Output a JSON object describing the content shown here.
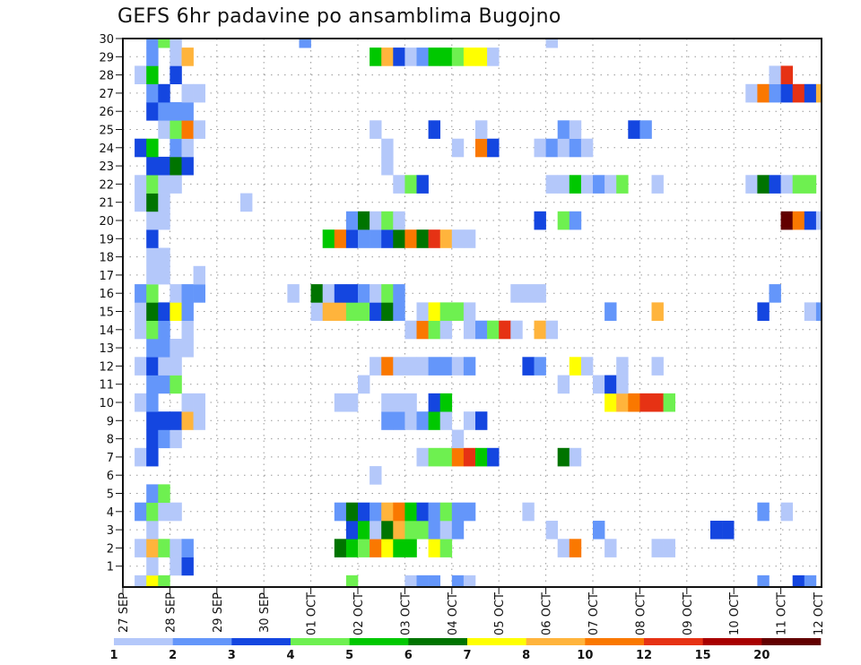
{
  "chart_data": {
    "type": "heatmap",
    "title": "GEFS 6hr padavine po ansamblima Bugojno",
    "xlabel": "",
    "ylabel": "",
    "x_unit": "6-hour step",
    "x_steps": 60,
    "x_tick_labels": [
      "27 SEP",
      "28 SEP",
      "29 SEP",
      "30 SEP",
      "01 OCT",
      "02 OCT",
      "03 OCT",
      "04 OCT",
      "05 OCT",
      "06 OCT",
      "07 OCT",
      "08 OCT",
      "09 OCT",
      "10 OCT",
      "11 OCT",
      "12 OCT"
    ],
    "y_tick_labels": [
      "1",
      "2",
      "3",
      "4",
      "5",
      "6",
      "7",
      "8",
      "9",
      "10",
      "11",
      "12",
      "13",
      "14",
      "15",
      "16",
      "17",
      "18",
      "19",
      "20",
      "21",
      "22",
      "23",
      "24",
      "25",
      "26",
      "27",
      "28",
      "29",
      "30"
    ],
    "ylim": [
      0,
      30
    ],
    "grid": true,
    "legend": {
      "placement": "bottom",
      "labels": [
        "1",
        "2",
        "3",
        "4",
        "5",
        "6",
        "7",
        "8",
        "10",
        "12",
        "15",
        "20"
      ],
      "colors": [
        "#b4c8fa",
        "#6496fa",
        "#1446e0",
        "#6ef050",
        "#00c800",
        "#007400",
        "#ffff00",
        "#ffb43c",
        "#fa7800",
        "#e63214",
        "#a80000",
        "#620000"
      ]
    },
    "cells_note": "rows keyed by ensemble member; each pair is [6h step index, colour class 1-12]",
    "rows": {
      "30": [
        [
          2,
          2
        ],
        [
          3,
          4
        ],
        [
          4,
          1
        ],
        [
          15,
          2
        ],
        [
          36,
          1
        ]
      ],
      "29": [
        [
          2,
          2
        ],
        [
          4,
          1
        ],
        [
          5,
          8
        ],
        [
          21,
          5
        ],
        [
          22,
          8
        ],
        [
          23,
          3
        ],
        [
          24,
          1
        ],
        [
          25,
          2
        ],
        [
          26,
          5
        ],
        [
          27,
          5
        ],
        [
          28,
          4
        ],
        [
          29,
          7
        ],
        [
          30,
          7
        ],
        [
          31,
          1
        ]
      ],
      "28": [
        [
          1,
          1
        ],
        [
          2,
          5
        ],
        [
          4,
          3
        ],
        [
          55,
          1
        ],
        [
          56,
          10
        ]
      ],
      "27": [
        [
          2,
          2
        ],
        [
          3,
          3
        ],
        [
          5,
          1
        ],
        [
          6,
          1
        ],
        [
          53,
          1
        ],
        [
          54,
          9
        ],
        [
          55,
          2
        ],
        [
          56,
          3
        ],
        [
          57,
          10
        ],
        [
          58,
          3
        ],
        [
          59,
          8
        ]
      ],
      "26": [
        [
          2,
          3
        ],
        [
          3,
          2
        ],
        [
          4,
          2
        ],
        [
          5,
          2
        ]
      ],
      "25": [
        [
          3,
          1
        ],
        [
          4,
          4
        ],
        [
          5,
          9
        ],
        [
          6,
          1
        ],
        [
          21,
          1
        ],
        [
          26,
          3
        ],
        [
          30,
          1
        ],
        [
          37,
          2
        ],
        [
          38,
          1
        ],
        [
          43,
          3
        ],
        [
          44,
          2
        ]
      ],
      "24": [
        [
          1,
          3
        ],
        [
          2,
          5
        ],
        [
          4,
          2
        ],
        [
          5,
          1
        ],
        [
          22,
          1
        ],
        [
          28,
          1
        ],
        [
          30,
          9
        ],
        [
          31,
          3
        ],
        [
          35,
          1
        ],
        [
          36,
          2
        ],
        [
          37,
          1
        ],
        [
          38,
          2
        ],
        [
          39,
          1
        ]
      ],
      "23": [
        [
          2,
          3
        ],
        [
          3,
          3
        ],
        [
          4,
          6
        ],
        [
          5,
          3
        ],
        [
          22,
          1
        ]
      ],
      "22": [
        [
          1,
          1
        ],
        [
          2,
          4
        ],
        [
          3,
          1
        ],
        [
          4,
          1
        ],
        [
          23,
          1
        ],
        [
          24,
          4
        ],
        [
          25,
          3
        ],
        [
          36,
          1
        ],
        [
          37,
          1
        ],
        [
          38,
          5
        ],
        [
          39,
          1
        ],
        [
          40,
          2
        ],
        [
          41,
          1
        ],
        [
          42,
          4
        ],
        [
          45,
          1
        ],
        [
          53,
          1
        ],
        [
          54,
          6
        ],
        [
          55,
          3
        ],
        [
          56,
          1
        ],
        [
          57,
          4
        ],
        [
          58,
          4
        ]
      ],
      "21": [
        [
          1,
          1
        ],
        [
          2,
          6
        ],
        [
          3,
          1
        ],
        [
          10,
          1
        ]
      ],
      "20": [
        [
          2,
          1
        ],
        [
          3,
          1
        ],
        [
          19,
          2
        ],
        [
          20,
          6
        ],
        [
          21,
          1
        ],
        [
          22,
          4
        ],
        [
          23,
          1
        ],
        [
          35,
          3
        ],
        [
          37,
          4
        ],
        [
          38,
          2
        ],
        [
          56,
          12
        ],
        [
          57,
          9
        ],
        [
          58,
          3
        ],
        [
          59,
          1
        ]
      ],
      "19": [
        [
          2,
          3
        ],
        [
          17,
          5
        ],
        [
          18,
          9
        ],
        [
          19,
          3
        ],
        [
          20,
          2
        ],
        [
          21,
          2
        ],
        [
          22,
          3
        ],
        [
          23,
          6
        ],
        [
          24,
          9
        ],
        [
          25,
          6
        ],
        [
          26,
          10
        ],
        [
          27,
          8
        ],
        [
          28,
          1
        ],
        [
          29,
          1
        ]
      ],
      "18": [
        [
          2,
          1
        ],
        [
          3,
          1
        ]
      ],
      "17": [
        [
          2,
          1
        ],
        [
          3,
          1
        ],
        [
          6,
          1
        ]
      ],
      "16": [
        [
          1,
          2
        ],
        [
          2,
          4
        ],
        [
          4,
          1
        ],
        [
          5,
          2
        ],
        [
          6,
          2
        ],
        [
          14,
          1
        ],
        [
          16,
          6
        ],
        [
          17,
          1
        ],
        [
          18,
          3
        ],
        [
          19,
          3
        ],
        [
          20,
          2
        ],
        [
          21,
          1
        ],
        [
          22,
          4
        ],
        [
          23,
          2
        ],
        [
          33,
          1
        ],
        [
          34,
          1
        ],
        [
          35,
          1
        ],
        [
          55,
          2
        ]
      ],
      "15": [
        [
          1,
          1
        ],
        [
          2,
          6
        ],
        [
          3,
          3
        ],
        [
          4,
          7
        ],
        [
          5,
          2
        ],
        [
          16,
          1
        ],
        [
          17,
          8
        ],
        [
          18,
          8
        ],
        [
          19,
          4
        ],
        [
          20,
          4
        ],
        [
          21,
          3
        ],
        [
          22,
          6
        ],
        [
          23,
          2
        ],
        [
          25,
          1
        ],
        [
          26,
          7
        ],
        [
          27,
          4
        ],
        [
          28,
          4
        ],
        [
          29,
          1
        ],
        [
          41,
          2
        ],
        [
          45,
          8
        ],
        [
          54,
          3
        ],
        [
          58,
          1
        ],
        [
          59,
          2
        ]
      ],
      "14": [
        [
          1,
          1
        ],
        [
          2,
          4
        ],
        [
          3,
          2
        ],
        [
          5,
          1
        ],
        [
          24,
          1
        ],
        [
          25,
          9
        ],
        [
          26,
          4
        ],
        [
          27,
          1
        ],
        [
          29,
          1
        ],
        [
          30,
          2
        ],
        [
          31,
          4
        ],
        [
          32,
          10
        ],
        [
          33,
          1
        ],
        [
          35,
          8
        ],
        [
          36,
          1
        ]
      ],
      "13": [
        [
          2,
          2
        ],
        [
          3,
          2
        ],
        [
          4,
          1
        ],
        [
          5,
          1
        ]
      ],
      "12": [
        [
          1,
          1
        ],
        [
          2,
          3
        ],
        [
          3,
          1
        ],
        [
          4,
          1
        ],
        [
          21,
          1
        ],
        [
          22,
          9
        ],
        [
          23,
          1
        ],
        [
          24,
          1
        ],
        [
          25,
          1
        ],
        [
          26,
          2
        ],
        [
          27,
          2
        ],
        [
          28,
          1
        ],
        [
          29,
          2
        ],
        [
          34,
          3
        ],
        [
          35,
          2
        ],
        [
          38,
          7
        ],
        [
          39,
          1
        ],
        [
          42,
          1
        ],
        [
          45,
          1
        ]
      ],
      "11": [
        [
          2,
          2
        ],
        [
          3,
          2
        ],
        [
          4,
          4
        ],
        [
          20,
          1
        ],
        [
          37,
          1
        ],
        [
          40,
          1
        ],
        [
          41,
          3
        ],
        [
          42,
          1
        ]
      ],
      "10": [
        [
          1,
          1
        ],
        [
          2,
          2
        ],
        [
          5,
          1
        ],
        [
          6,
          1
        ],
        [
          18,
          1
        ],
        [
          19,
          1
        ],
        [
          22,
          1
        ],
        [
          23,
          1
        ],
        [
          24,
          1
        ],
        [
          26,
          3
        ],
        [
          27,
          5
        ],
        [
          41,
          7
        ],
        [
          42,
          8
        ],
        [
          43,
          9
        ],
        [
          44,
          10
        ],
        [
          45,
          10
        ],
        [
          46,
          4
        ]
      ],
      "9": [
        [
          2,
          3
        ],
        [
          3,
          3
        ],
        [
          4,
          3
        ],
        [
          5,
          8
        ],
        [
          6,
          1
        ],
        [
          22,
          2
        ],
        [
          23,
          2
        ],
        [
          24,
          1
        ],
        [
          25,
          2
        ],
        [
          26,
          5
        ],
        [
          27,
          1
        ],
        [
          29,
          1
        ],
        [
          30,
          3
        ]
      ],
      "8": [
        [
          2,
          3
        ],
        [
          3,
          2
        ],
        [
          4,
          1
        ],
        [
          28,
          1
        ]
      ],
      "7": [
        [
          1,
          1
        ],
        [
          2,
          3
        ],
        [
          25,
          1
        ],
        [
          26,
          4
        ],
        [
          27,
          4
        ],
        [
          28,
          9
        ],
        [
          29,
          10
        ],
        [
          30,
          5
        ],
        [
          31,
          3
        ],
        [
          37,
          6
        ],
        [
          38,
          1
        ]
      ],
      "6": [
        [
          21,
          1
        ]
      ],
      "5": [
        [
          2,
          2
        ],
        [
          3,
          4
        ]
      ],
      "4": [
        [
          1,
          2
        ],
        [
          2,
          4
        ],
        [
          3,
          1
        ],
        [
          4,
          1
        ],
        [
          18,
          2
        ],
        [
          19,
          6
        ],
        [
          20,
          3
        ],
        [
          21,
          2
        ],
        [
          22,
          8
        ],
        [
          23,
          9
        ],
        [
          24,
          5
        ],
        [
          25,
          3
        ],
        [
          26,
          2
        ],
        [
          27,
          4
        ],
        [
          28,
          2
        ],
        [
          29,
          2
        ],
        [
          34,
          1
        ],
        [
          54,
          2
        ],
        [
          56,
          1
        ]
      ],
      "3": [
        [
          2,
          1
        ],
        [
          19,
          3
        ],
        [
          20,
          5
        ],
        [
          21,
          1
        ],
        [
          22,
          6
        ],
        [
          23,
          8
        ],
        [
          24,
          4
        ],
        [
          25,
          4
        ],
        [
          26,
          2
        ],
        [
          27,
          1
        ],
        [
          28,
          2
        ],
        [
          36,
          1
        ],
        [
          40,
          2
        ],
        [
          50,
          3
        ],
        [
          51,
          3
        ]
      ],
      "2": [
        [
          1,
          1
        ],
        [
          2,
          8
        ],
        [
          3,
          4
        ],
        [
          4,
          1
        ],
        [
          5,
          2
        ],
        [
          18,
          6
        ],
        [
          19,
          5
        ],
        [
          20,
          4
        ],
        [
          21,
          9
        ],
        [
          22,
          7
        ],
        [
          23,
          5
        ],
        [
          24,
          5
        ],
        [
          26,
          7
        ],
        [
          27,
          4
        ],
        [
          37,
          1
        ],
        [
          38,
          9
        ],
        [
          41,
          1
        ],
        [
          45,
          1
        ],
        [
          46,
          1
        ]
      ],
      "1": [
        [
          2,
          1
        ],
        [
          4,
          1
        ],
        [
          5,
          3
        ]
      ],
      "0": [
        [
          1,
          1
        ],
        [
          2,
          7
        ],
        [
          3,
          4
        ],
        [
          19,
          4
        ],
        [
          24,
          1
        ],
        [
          25,
          2
        ],
        [
          26,
          2
        ],
        [
          28,
          2
        ],
        [
          29,
          1
        ],
        [
          54,
          2
        ],
        [
          57,
          3
        ],
        [
          58,
          2
        ]
      ]
    }
  }
}
